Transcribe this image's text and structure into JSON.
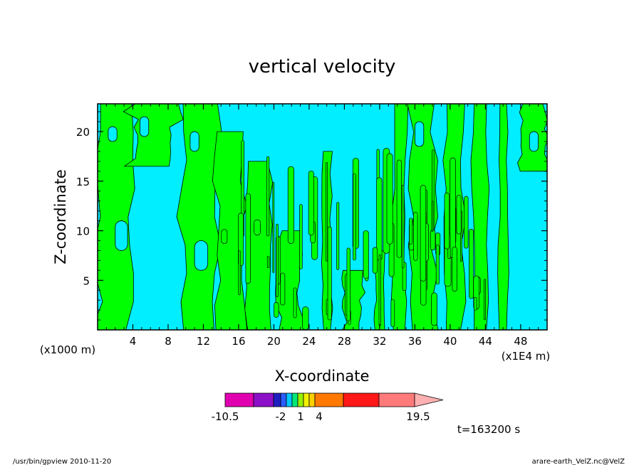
{
  "chart_data": {
    "type": "heatmap",
    "title": "vertical velocity",
    "xlabel": "X-coordinate",
    "ylabel": "Z-coordinate",
    "x_unit_left": "(x1000 m)",
    "x_unit_right": "(x1E4 m)",
    "x_ticks": [
      "4",
      "8",
      "12",
      "16",
      "20",
      "24",
      "28",
      "32",
      "36",
      "40",
      "44",
      "48"
    ],
    "y_ticks": [
      "5",
      "10",
      "15",
      "20"
    ],
    "xlim": [
      0,
      51
    ],
    "ylim": [
      0,
      22.8
    ],
    "colorbar": {
      "labels": [
        "-10.5",
        "-2",
        "1",
        "4",
        "19.5"
      ],
      "colors": [
        "#e000b0",
        "#8c10c8",
        "#2020c0",
        "#2a5cff",
        "#00c8ff",
        "#00e878",
        "#96f000",
        "#f0f000",
        "#ffd000",
        "#ff7800",
        "#ff1818",
        "#ff7a7a",
        "#ffb0b0"
      ]
    },
    "fields": {
      "positive_color": "#00ff00",
      "negative_color": "#00eeff"
    },
    "time_label": "t=163200 s"
  },
  "footer": {
    "left": "/usr/bin/gpview   2010-11-20",
    "right": "arare-earth_VelZ.nc@VelZ"
  }
}
